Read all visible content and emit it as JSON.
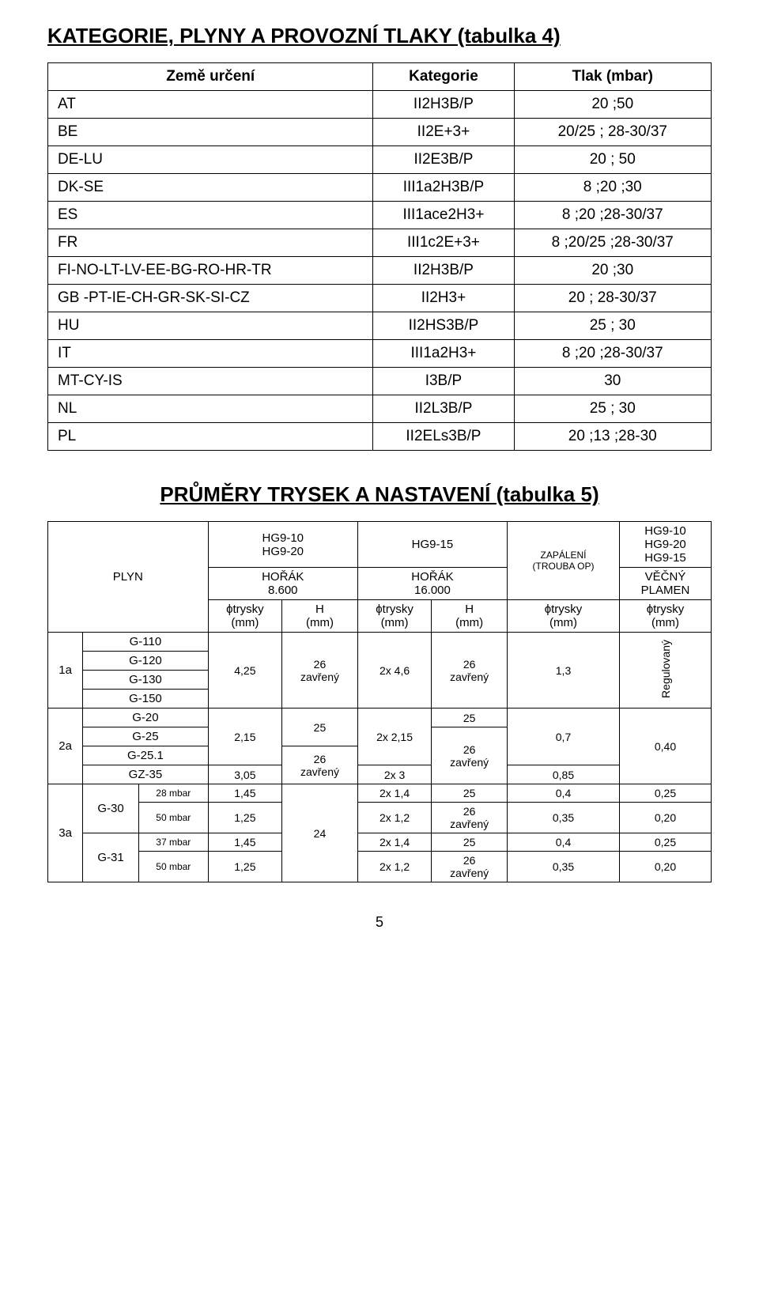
{
  "t4": {
    "title": "KATEGORIE, PLYNY A PROVOZNÍ TLAKY (tabulka 4)",
    "head": {
      "country": "Země určení",
      "cat": "Kategorie",
      "press": "Tlak (mbar)"
    },
    "rows": [
      {
        "c": "AT",
        "k": "II2H3B/P",
        "t": "20 ;50"
      },
      {
        "c": "BE",
        "k": "II2E+3+",
        "t": "20/25 ; 28-30/37"
      },
      {
        "c": "DE-LU",
        "k": "II2E3B/P",
        "t": "20 ; 50"
      },
      {
        "c": "DK-SE",
        "k": "III1a2H3B/P",
        "t": "8 ;20 ;30"
      },
      {
        "c": "ES",
        "k": "III1ace2H3+",
        "t": "8 ;20 ;28-30/37"
      },
      {
        "c": "FR",
        "k": "III1c2E+3+",
        "t": "8 ;20/25 ;28-30/37"
      },
      {
        "c": "FI-NO-LT-LV-EE-BG-RO-HR-TR",
        "k": "II2H3B/P",
        "t": "20 ;30"
      },
      {
        "c": "GB -PT-IE-CH-GR-SK-SI-CZ",
        "k": "II2H3+",
        "t": "20 ; 28-30/37"
      },
      {
        "c": "HU",
        "k": "II2HS3B/P",
        "t": "25 ; 30"
      },
      {
        "c": "IT",
        "k": "III1a2H3+",
        "t": "8 ;20 ;28-30/37"
      },
      {
        "c": "MT-CY-IS",
        "k": "I3B/P",
        "t": "30"
      },
      {
        "c": "NL",
        "k": "II2L3B/P",
        "t": "25 ; 30"
      },
      {
        "c": "PL",
        "k": "II2ELs3B/P",
        "t": "20 ;13 ;28-30"
      }
    ]
  },
  "t5": {
    "title": "PRŮMĚRY TRYSEK A NASTAVENÍ (tabulka 5)",
    "head": {
      "plyn": "PLYN",
      "hg1": "HG9-10\nHG9-20",
      "hg2": "HG9-15",
      "hg3": "HG9-10\nHG9-20\nHG9-15",
      "horak": "HOŘÁK",
      "h8600": "8.600",
      "h16000": "16.000",
      "zap": "ZAPÁLENÍ",
      "trouba": "(TROUBA OP)",
      "vecny": "VĚČNÝ",
      "plamen": "PLAMEN",
      "phitr": "ϕtrysky",
      "mm": "(mm)",
      "H": "H"
    },
    "g": {
      "g110": "G-110",
      "g120": "G-120",
      "g130": "G-130",
      "g150": "G-150",
      "g20": "G-20",
      "g25": "G-25",
      "g251": "G-25.1",
      "gz35": "GZ-35",
      "g30": "G-30",
      "g31": "G-31"
    },
    "mbar28": "28 mbar",
    "mbar50": "50 mbar",
    "mbar37": "37 mbar",
    "grp": {
      "a1": "1a",
      "a2": "2a",
      "a3": "3a"
    },
    "v": {
      "d425": "4,25",
      "z26": "26\nzavřený",
      "x46": "2x 4,6",
      "d13": "1,3",
      "reg": "Regulovaný",
      "d215": "2,15",
      "h25": "25",
      "x215": "2x 2,15",
      "v25": "25",
      "d07": "0,7",
      "d040": "0,40",
      "d305": "3,05",
      "x3": "2x 3",
      "d085": "0,85",
      "d145": "1,45",
      "x14": "2x 1,4",
      "v25b": "25",
      "d04": "0,4",
      "d025": "0,25",
      "d125": "1,25",
      "h24": "24",
      "x12": "2x 1,2",
      "d035": "0,35",
      "d020": "0,20"
    }
  },
  "page": "5"
}
